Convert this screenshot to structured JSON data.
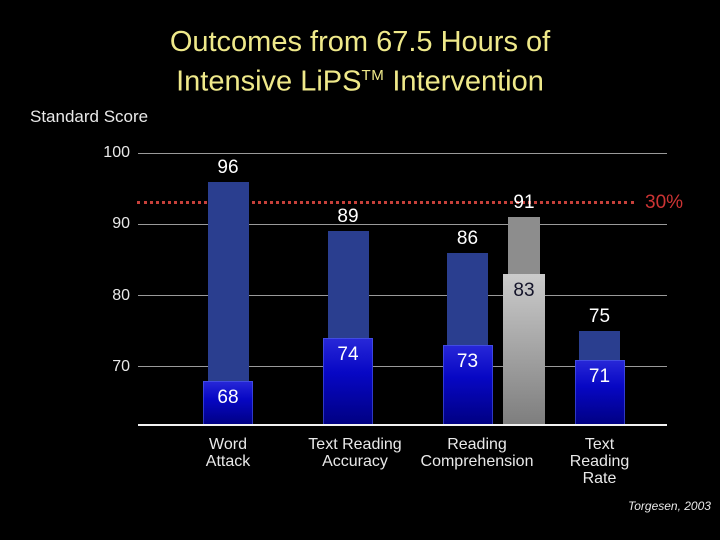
{
  "title": {
    "line1": "Outcomes from 67.5 Hours of",
    "line2_pre": "Intensive LiPS",
    "line2_sup": "TM",
    "line2_post": " Intervention"
  },
  "axis": {
    "label": "Standard Score"
  },
  "benchmark": {
    "label": "30%"
  },
  "citation": "Torgesen, 2003",
  "colors": {
    "background": "#000000",
    "title_color": "#efe98a",
    "text_color": "#e9e9e9",
    "gridline_color": "#9a9a9a",
    "baseline_color": "#f2f2f2",
    "benchmark_color": "#c7403a",
    "benchmark_label_color": "#cd3434",
    "bar_blue_back": "#2a3e8f",
    "bar_blue_front_top": "#2828d8",
    "bar_blue_front_mid": "#0707c4",
    "bar_blue_front_bottom": "#000080",
    "bar_gray_back": "#8d8d8d",
    "bar_gray_front_top": "#cbcbcb",
    "bar_gray_front_bottom": "#7d7d7d",
    "value_label_color": "#ffffff",
    "gray_front_label_color": "#14142a"
  },
  "chart_data": {
    "type": "bar",
    "title": "Outcomes from 67.5 Hours of Intensive LiPS™ Intervention",
    "ylabel": "Standard Score",
    "yticks": [
      100,
      90,
      80,
      70
    ],
    "ylim": [
      62,
      104
    ],
    "grid": "horizontal",
    "legend": false,
    "categories": [
      "Word Attack",
      "Text Reading Accuracy",
      "Reading Comprehension",
      "Text Reading Rate"
    ],
    "categories_lines": [
      [
        "Word",
        "Attack"
      ],
      [
        "Text Reading",
        "Accuracy"
      ],
      [
        "Reading",
        "Comprehension"
      ],
      [
        "Text",
        "Reading",
        "Rate"
      ]
    ],
    "groups": [
      {
        "category": "Word Attack",
        "back_value": 96,
        "front_value": 68,
        "palette": "blue"
      },
      {
        "category": "Text Reading Accuracy",
        "back_value": 89,
        "front_value": 74,
        "palette": "blue"
      },
      {
        "category": "Reading Comprehension",
        "back_value": 86,
        "front_value": 73,
        "palette": "blue"
      },
      {
        "category": "Reading Comprehension",
        "back_value": 91,
        "front_value": 83,
        "palette": "gray"
      },
      {
        "category": "Text Reading Rate",
        "back_value": 75,
        "front_value": 71,
        "palette": "blue"
      }
    ],
    "benchmark_line": {
      "label": "30%",
      "style": "red dotted horizontal line"
    }
  }
}
